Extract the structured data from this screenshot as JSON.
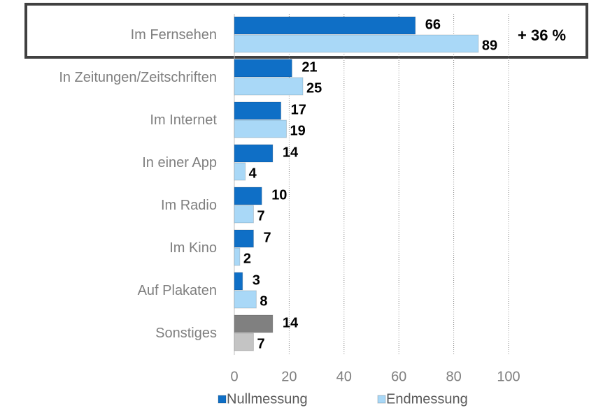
{
  "chart_data": {
    "type": "hbar",
    "categories": [
      "Im Fernsehen",
      "In Zeitungen/Zeitschriften",
      "Im Internet",
      "In einer App",
      "Im Radio",
      "Im Kino",
      "Auf Plakaten",
      "Sonstiges"
    ],
    "series": [
      {
        "name": "Nullmessung",
        "color": "#0f6fc6",
        "colors": [
          "#0f6fc6",
          "#0f6fc6",
          "#0f6fc6",
          "#0f6fc6",
          "#0f6fc6",
          "#0f6fc6",
          "#0f6fc6",
          "#808080"
        ],
        "values": [
          66,
          21,
          17,
          14,
          10,
          7,
          3,
          14
        ]
      },
      {
        "name": "Endmessung",
        "color": "#a9d8f7",
        "colors": [
          "#a9d8f7",
          "#a9d8f7",
          "#a9d8f7",
          "#a9d8f7",
          "#a9d8f7",
          "#a9d8f7",
          "#a9d8f7",
          "#c4c4c4"
        ],
        "values": [
          89,
          25,
          19,
          4,
          7,
          2,
          8,
          7
        ]
      }
    ],
    "xlim": [
      0,
      100
    ],
    "xticks": [
      0,
      20,
      40,
      60,
      80,
      100
    ],
    "grid": true,
    "annotation": "+ 36 %",
    "legend": "bottom"
  }
}
